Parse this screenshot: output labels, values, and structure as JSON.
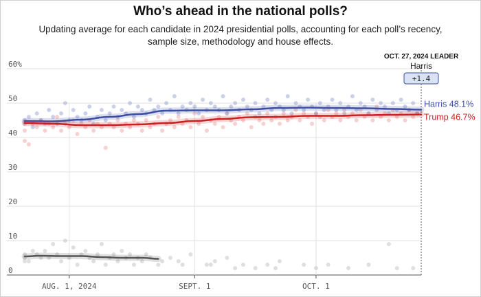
{
  "header": {
    "title": "Who’s ahead in the national polls?",
    "subtitle": "Updating average for each candidate in 2024 presidential polls, accounting for each poll’s recency, sample size, methodology and house effects."
  },
  "leader_box": {
    "date_label": "OCT. 27, 2024 LEADER",
    "name": "Harris",
    "margin": "+1.4"
  },
  "chart_data": {
    "type": "line",
    "title": "Who’s ahead in the national polls?",
    "x_range": [
      "2024-07-21",
      "2024-10-27"
    ],
    "x_ticks": [
      {
        "date": "2024-08-01",
        "label": "AUG. 1, 2024"
      },
      {
        "date": "2024-09-01",
        "label": "SEPT. 1"
      },
      {
        "date": "2024-10-01",
        "label": "OCT. 1"
      }
    ],
    "ylim": [
      0,
      60
    ],
    "y_ticks": [
      {
        "value": 0,
        "label": "0"
      },
      {
        "value": 10,
        "label": "10"
      },
      {
        "value": 20,
        "label": "20"
      },
      {
        "value": 30,
        "label": "30"
      },
      {
        "value": 40,
        "label": "40"
      },
      {
        "value": 50,
        "label": "50"
      },
      {
        "value": 60,
        "label": "60%"
      }
    ],
    "grid": true,
    "series": [
      {
        "name": "Harris",
        "end_label": "Harris 48.1%",
        "color": "#3b4ea3",
        "dot_color": "#8f9ad0",
        "x": [
          "2024-07-21",
          "2024-07-28",
          "2024-08-04",
          "2024-08-11",
          "2024-08-18",
          "2024-08-25",
          "2024-09-01",
          "2024-09-08",
          "2024-09-15",
          "2024-09-22",
          "2024-09-29",
          "2024-10-06",
          "2024-10-13",
          "2024-10-20",
          "2024-10-27"
        ],
        "values": [
          44.8,
          44.7,
          45.2,
          46.0,
          46.8,
          47.8,
          47.9,
          47.9,
          48.2,
          48.6,
          48.7,
          48.6,
          48.5,
          48.3,
          48.1
        ]
      },
      {
        "name": "Trump",
        "end_label": "Trump 46.7%",
        "color": "#cc1f1f",
        "dot_color": "#ee9a9a",
        "x": [
          "2024-07-21",
          "2024-07-28",
          "2024-08-04",
          "2024-08-11",
          "2024-08-18",
          "2024-08-25",
          "2024-09-01",
          "2024-09-08",
          "2024-09-15",
          "2024-09-22",
          "2024-09-29",
          "2024-10-06",
          "2024-10-13",
          "2024-10-20",
          "2024-10-27"
        ],
        "values": [
          44.2,
          44.0,
          43.6,
          43.6,
          43.8,
          44.2,
          44.8,
          45.4,
          45.9,
          46.0,
          46.3,
          46.3,
          46.5,
          46.6,
          46.7
        ]
      },
      {
        "name": "",
        "end_label": "",
        "color": "#555555",
        "dot_color": "#b8b8b8",
        "x": [
          "2024-07-21",
          "2024-07-25",
          "2024-07-30",
          "2024-08-04",
          "2024-08-09",
          "2024-08-14",
          "2024-08-19",
          "2024-08-23"
        ],
        "values": [
          5.4,
          5.6,
          5.5,
          5.5,
          5.2,
          5.0,
          5.0,
          4.7
        ]
      }
    ],
    "poll_dots": {
      "Harris": [
        [
          0,
          45
        ],
        [
          0,
          44
        ],
        [
          1,
          46
        ],
        [
          2,
          43
        ],
        [
          3,
          47
        ],
        [
          4,
          45
        ],
        [
          5,
          44
        ],
        [
          6,
          48
        ],
        [
          7,
          46
        ],
        [
          8,
          44
        ],
        [
          9,
          47
        ],
        [
          10,
          50
        ],
        [
          11,
          45
        ],
        [
          12,
          48
        ],
        [
          13,
          46
        ],
        [
          14,
          45
        ],
        [
          15,
          47
        ],
        [
          16,
          49
        ],
        [
          17,
          44
        ],
        [
          18,
          46
        ],
        [
          19,
          48
        ],
        [
          20,
          45
        ],
        [
          21,
          47
        ],
        [
          22,
          49
        ],
        [
          23,
          46
        ],
        [
          24,
          48
        ],
        [
          25,
          47
        ],
        [
          26,
          50
        ],
        [
          27,
          46
        ],
        [
          28,
          49
        ],
        [
          29,
          48
        ],
        [
          30,
          47
        ],
        [
          31,
          51
        ],
        [
          32,
          48
        ],
        [
          33,
          49
        ],
        [
          34,
          47
        ],
        [
          35,
          50
        ],
        [
          36,
          48
        ],
        [
          37,
          52
        ],
        [
          38,
          47
        ],
        [
          39,
          49
        ],
        [
          40,
          48
        ],
        [
          41,
          50
        ],
        [
          42,
          49
        ],
        [
          43,
          47
        ],
        [
          44,
          51
        ],
        [
          45,
          48
        ],
        [
          46,
          50
        ],
        [
          47,
          49
        ],
        [
          48,
          48
        ],
        [
          49,
          52
        ],
        [
          50,
          47
        ],
        [
          51,
          49
        ],
        [
          52,
          50
        ],
        [
          53,
          48
        ],
        [
          54,
          51
        ],
        [
          55,
          49
        ],
        [
          56,
          48
        ],
        [
          57,
          50
        ],
        [
          58,
          47
        ],
        [
          59,
          49
        ],
        [
          60,
          51
        ],
        [
          61,
          48
        ],
        [
          62,
          50
        ],
        [
          63,
          49
        ],
        [
          64,
          48
        ],
        [
          65,
          52
        ],
        [
          66,
          47
        ],
        [
          67,
          50
        ],
        [
          68,
          49
        ],
        [
          69,
          48
        ],
        [
          70,
          51
        ],
        [
          71,
          49
        ],
        [
          72,
          47
        ],
        [
          73,
          50
        ],
        [
          74,
          48
        ],
        [
          75,
          49
        ],
        [
          76,
          51
        ],
        [
          77,
          48
        ],
        [
          78,
          50
        ],
        [
          79,
          47
        ],
        [
          80,
          49
        ],
        [
          81,
          52
        ],
        [
          82,
          48
        ],
        [
          83,
          50
        ],
        [
          84,
          49
        ],
        [
          85,
          47
        ],
        [
          86,
          51
        ],
        [
          87,
          48
        ],
        [
          88,
          50
        ],
        [
          89,
          49
        ],
        [
          90,
          47
        ],
        [
          91,
          50
        ],
        [
          92,
          48
        ],
        [
          93,
          51
        ],
        [
          94,
          49
        ],
        [
          95,
          48
        ],
        [
          96,
          50
        ],
        [
          97,
          47
        ]
      ],
      "Trump": [
        [
          0,
          39
        ],
        [
          0,
          42
        ],
        [
          1,
          38
        ],
        [
          2,
          44
        ],
        [
          3,
          43
        ],
        [
          4,
          45
        ],
        [
          5,
          42
        ],
        [
          6,
          44
        ],
        [
          7,
          43
        ],
        [
          8,
          46
        ],
        [
          9,
          42
        ],
        [
          10,
          44
        ],
        [
          11,
          43
        ],
        [
          12,
          45
        ],
        [
          13,
          41
        ],
        [
          14,
          44
        ],
        [
          15,
          43
        ],
        [
          16,
          45
        ],
        [
          17,
          42
        ],
        [
          18,
          44
        ],
        [
          19,
          43
        ],
        [
          20,
          37
        ],
        [
          21,
          44
        ],
        [
          22,
          43
        ],
        [
          23,
          45
        ],
        [
          24,
          42
        ],
        [
          25,
          44
        ],
        [
          26,
          43
        ],
        [
          27,
          45
        ],
        [
          28,
          44
        ],
        [
          29,
          42
        ],
        [
          30,
          45
        ],
        [
          31,
          43
        ],
        [
          32,
          44
        ],
        [
          33,
          46
        ],
        [
          34,
          42
        ],
        [
          35,
          44
        ],
        [
          36,
          45
        ],
        [
          37,
          43
        ],
        [
          38,
          46
        ],
        [
          39,
          44
        ],
        [
          40,
          45
        ],
        [
          41,
          43
        ],
        [
          42,
          47
        ],
        [
          43,
          44
        ],
        [
          44,
          46
        ],
        [
          45,
          42
        ],
        [
          46,
          45
        ],
        [
          47,
          44
        ],
        [
          48,
          46
        ],
        [
          49,
          43
        ],
        [
          50,
          47
        ],
        [
          51,
          45
        ],
        [
          52,
          44
        ],
        [
          53,
          46
        ],
        [
          54,
          45
        ],
        [
          55,
          47
        ],
        [
          56,
          43
        ],
        [
          57,
          46
        ],
        [
          58,
          45
        ],
        [
          59,
          44
        ],
        [
          60,
          47
        ],
        [
          61,
          45
        ],
        [
          62,
          46
        ],
        [
          63,
          44
        ],
        [
          64,
          47
        ],
        [
          65,
          45
        ],
        [
          66,
          46
        ],
        [
          67,
          48
        ],
        [
          68,
          45
        ],
        [
          69,
          47
        ],
        [
          70,
          46
        ],
        [
          71,
          44
        ],
        [
          72,
          47
        ],
        [
          73,
          46
        ],
        [
          74,
          45
        ],
        [
          75,
          48
        ],
        [
          76,
          46
        ],
        [
          77,
          47
        ],
        [
          78,
          45
        ],
        [
          79,
          48
        ],
        [
          80,
          46
        ],
        [
          81,
          47
        ],
        [
          82,
          45
        ],
        [
          83,
          48
        ],
        [
          84,
          46
        ],
        [
          85,
          47
        ],
        [
          86,
          45
        ],
        [
          87,
          49
        ],
        [
          88,
          46
        ],
        [
          89,
          47
        ],
        [
          90,
          45
        ],
        [
          91,
          48
        ],
        [
          92,
          46
        ],
        [
          93,
          47
        ],
        [
          94,
          45
        ],
        [
          95,
          48
        ],
        [
          96,
          46
        ],
        [
          97,
          47
        ]
      ],
      "Other": [
        [
          0,
          6
        ],
        [
          0,
          5
        ],
        [
          0,
          4
        ],
        [
          1,
          4
        ],
        [
          2,
          7
        ],
        [
          3,
          6
        ],
        [
          4,
          5
        ],
        [
          5,
          7
        ],
        [
          6,
          5
        ],
        [
          7,
          9
        ],
        [
          8,
          6
        ],
        [
          9,
          4
        ],
        [
          10,
          10
        ],
        [
          11,
          5
        ],
        [
          12,
          8
        ],
        [
          13,
          3
        ],
        [
          14,
          6
        ],
        [
          15,
          7
        ],
        [
          16,
          5
        ],
        [
          17,
          4
        ],
        [
          18,
          6
        ],
        [
          19,
          9
        ],
        [
          20,
          3
        ],
        [
          21,
          5
        ],
        [
          22,
          6
        ],
        [
          23,
          4
        ],
        [
          24,
          7
        ],
        [
          25,
          5
        ],
        [
          26,
          6
        ],
        [
          27,
          3
        ],
        [
          28,
          5
        ],
        [
          29,
          4
        ],
        [
          30,
          6
        ],
        [
          31,
          5
        ],
        [
          33,
          3
        ],
        [
          34,
          4
        ],
        [
          36,
          5
        ],
        [
          38,
          4
        ],
        [
          39,
          3
        ],
        [
          41,
          6
        ],
        [
          45,
          3
        ],
        [
          46,
          3
        ],
        [
          47,
          4
        ],
        [
          50,
          5
        ],
        [
          52,
          2
        ],
        [
          54,
          3
        ],
        [
          57,
          2
        ],
        [
          60,
          3
        ],
        [
          62,
          2
        ],
        [
          63,
          4
        ],
        [
          69,
          3
        ],
        [
          72,
          2
        ],
        [
          75,
          3
        ],
        [
          80,
          2
        ],
        [
          85,
          3
        ],
        [
          90,
          9
        ],
        [
          92,
          2
        ],
        [
          96,
          2
        ]
      ]
    }
  }
}
